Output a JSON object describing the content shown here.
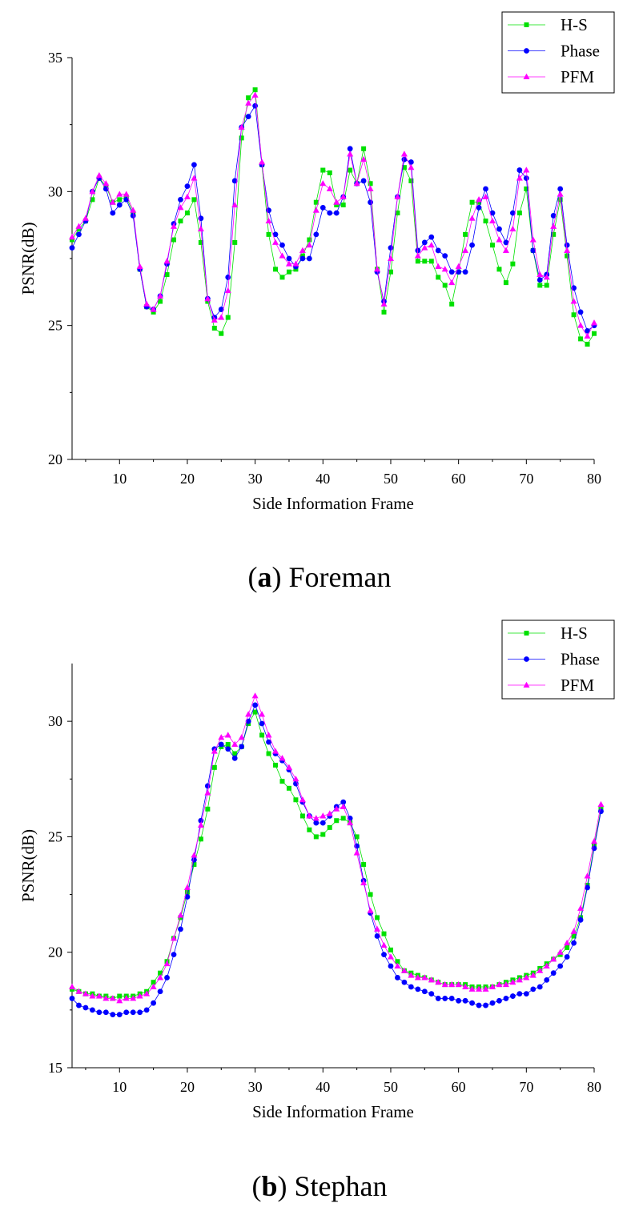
{
  "chart_data": [
    {
      "type": "line",
      "xlabel": "Side Information Frame",
      "ylabel": "PSNR(dB)",
      "xlim": [
        3,
        80
      ],
      "ylim": [
        20,
        35
      ],
      "xticks": [
        10,
        20,
        30,
        40,
        50,
        60,
        70,
        80
      ],
      "yticks": [
        20,
        25,
        30,
        35
      ],
      "grid": false,
      "legend_position": "top-right",
      "caption": {
        "open": "(",
        "letter": "a",
        "close": ")",
        "name": "Foreman"
      },
      "x_start": 3,
      "series": [
        {
          "name": "H-S",
          "color": "#00e000",
          "marker": "square",
          "values": [
            28.2,
            28.6,
            28.9,
            29.7,
            30.5,
            30.2,
            29.6,
            29.7,
            29.8,
            29.2,
            27.1,
            25.7,
            25.5,
            25.9,
            26.9,
            28.2,
            28.9,
            29.2,
            29.7,
            28.1,
            25.9,
            24.9,
            24.7,
            25.3,
            28.1,
            32.0,
            33.5,
            33.8,
            31.0,
            28.4,
            27.1,
            26.8,
            27.0,
            27.1,
            27.6,
            28.2,
            29.6,
            30.8,
            30.7,
            29.5,
            29.5,
            30.8,
            30.3,
            31.6,
            30.3,
            27.1,
            25.5,
            27.0,
            29.2,
            30.9,
            30.4,
            27.4,
            27.4,
            27.4,
            26.8,
            26.5,
            25.8,
            27.0,
            28.4,
            29.6,
            29.6,
            28.9,
            28.0,
            27.1,
            26.6,
            27.3,
            29.2,
            30.1,
            27.8,
            26.5,
            26.5,
            28.4,
            29.7,
            27.6,
            25.4,
            24.5,
            24.3,
            24.7
          ]
        },
        {
          "name": "Phase",
          "color": "#0000ff",
          "marker": "circle",
          "values": [
            27.9,
            28.4,
            28.9,
            30.0,
            30.5,
            30.1,
            29.2,
            29.5,
            29.7,
            29.1,
            27.1,
            25.7,
            25.6,
            26.1,
            27.3,
            28.8,
            29.7,
            30.2,
            31.0,
            29.0,
            26.0,
            25.3,
            25.6,
            26.8,
            30.4,
            32.4,
            32.8,
            33.2,
            31.0,
            29.3,
            28.4,
            28.0,
            27.5,
            27.2,
            27.5,
            27.5,
            28.4,
            29.4,
            29.2,
            29.2,
            29.8,
            31.6,
            30.3,
            30.4,
            29.6,
            27.0,
            25.9,
            27.9,
            29.8,
            31.2,
            31.1,
            27.8,
            28.1,
            28.3,
            27.8,
            27.6,
            27.0,
            27.0,
            27.0,
            28.0,
            29.4,
            30.1,
            29.2,
            28.6,
            28.1,
            29.2,
            30.8,
            30.5,
            27.8,
            26.7,
            26.9,
            29.1,
            30.1,
            28.0,
            26.4,
            25.5,
            24.8,
            25.0
          ]
        },
        {
          "name": "PFM",
          "color": "#ff00ff",
          "marker": "triangle",
          "values": [
            28.3,
            28.7,
            29.0,
            30.0,
            30.6,
            30.3,
            29.6,
            29.9,
            29.9,
            29.3,
            27.2,
            25.8,
            25.6,
            26.1,
            27.4,
            28.7,
            29.4,
            29.8,
            30.5,
            28.6,
            26.0,
            25.2,
            25.3,
            26.3,
            29.5,
            32.4,
            33.3,
            33.6,
            31.1,
            28.9,
            28.1,
            27.6,
            27.3,
            27.3,
            27.8,
            28.0,
            29.3,
            30.3,
            30.1,
            29.6,
            29.8,
            31.4,
            30.3,
            31.2,
            30.1,
            27.1,
            25.8,
            27.5,
            29.8,
            31.4,
            30.9,
            27.6,
            27.9,
            28.0,
            27.2,
            27.1,
            26.6,
            27.2,
            27.8,
            29.0,
            29.7,
            29.8,
            28.9,
            28.2,
            27.8,
            28.6,
            30.5,
            30.8,
            28.2,
            26.9,
            26.8,
            28.7,
            29.9,
            27.8,
            25.9,
            25.0,
            24.6,
            25.1
          ]
        }
      ]
    },
    {
      "type": "line",
      "xlabel": "Side Information Frame",
      "ylabel": "PSNR(dB)",
      "xlim": [
        3,
        80
      ],
      "ylim": [
        15,
        32.5
      ],
      "xticks": [
        10,
        20,
        30,
        40,
        50,
        60,
        70,
        80
      ],
      "yticks": [
        15,
        20,
        25,
        30
      ],
      "grid": false,
      "legend_position": "top-right",
      "caption": {
        "open": "(",
        "letter": "b",
        "close": ")",
        "name": "Stephan"
      },
      "x_start": 3,
      "series": [
        {
          "name": "H-S",
          "color": "#00e000",
          "marker": "square",
          "values": [
            18.4,
            18.3,
            18.2,
            18.2,
            18.1,
            18.1,
            18.0,
            18.1,
            18.1,
            18.1,
            18.2,
            18.3,
            18.7,
            19.1,
            19.6,
            20.6,
            21.5,
            22.6,
            23.8,
            24.9,
            26.2,
            28.0,
            28.9,
            29.0,
            28.6,
            28.9,
            29.9,
            30.4,
            29.4,
            28.6,
            28.1,
            27.4,
            27.1,
            26.6,
            25.9,
            25.3,
            25.0,
            25.1,
            25.4,
            25.7,
            25.8,
            25.6,
            25.0,
            23.8,
            22.5,
            21.5,
            20.8,
            20.1,
            19.6,
            19.2,
            19.1,
            19.0,
            18.9,
            18.8,
            18.7,
            18.6,
            18.6,
            18.6,
            18.6,
            18.5,
            18.5,
            18.5,
            18.5,
            18.6,
            18.7,
            18.8,
            18.9,
            19.0,
            19.1,
            19.3,
            19.5,
            19.7,
            19.9,
            20.2,
            20.7,
            21.5,
            22.9,
            24.6,
            26.2
          ]
        },
        {
          "name": "Phase",
          "color": "#0000ff",
          "marker": "circle",
          "values": [
            18.0,
            17.7,
            17.6,
            17.5,
            17.4,
            17.4,
            17.3,
            17.3,
            17.4,
            17.4,
            17.4,
            17.5,
            17.8,
            18.3,
            18.9,
            19.9,
            21.0,
            22.4,
            24.0,
            25.7,
            27.2,
            28.8,
            29.0,
            28.8,
            28.4,
            28.9,
            30.0,
            30.7,
            29.9,
            29.1,
            28.6,
            28.3,
            27.9,
            27.3,
            26.5,
            25.9,
            25.6,
            25.6,
            25.9,
            26.3,
            26.5,
            25.8,
            24.6,
            23.1,
            21.7,
            20.7,
            19.9,
            19.4,
            18.9,
            18.7,
            18.5,
            18.4,
            18.3,
            18.2,
            18.0,
            18.0,
            18.0,
            17.9,
            17.9,
            17.8,
            17.7,
            17.7,
            17.8,
            17.9,
            18.0,
            18.1,
            18.2,
            18.2,
            18.4,
            18.5,
            18.8,
            19.1,
            19.4,
            19.8,
            20.4,
            21.4,
            22.8,
            24.5,
            26.1
          ]
        },
        {
          "name": "PFM",
          "color": "#ff00ff",
          "marker": "triangle",
          "values": [
            18.5,
            18.3,
            18.2,
            18.1,
            18.1,
            18.0,
            18.0,
            17.9,
            18.0,
            18.0,
            18.1,
            18.2,
            18.5,
            18.9,
            19.5,
            20.6,
            21.6,
            22.8,
            24.2,
            25.5,
            26.9,
            28.7,
            29.3,
            29.4,
            29.0,
            29.3,
            30.3,
            31.1,
            30.3,
            29.4,
            28.7,
            28.4,
            28.0,
            27.5,
            26.6,
            25.9,
            25.8,
            25.9,
            26.0,
            26.2,
            26.3,
            25.6,
            24.3,
            23.0,
            21.8,
            21.0,
            20.3,
            19.8,
            19.4,
            19.2,
            19.0,
            18.9,
            18.9,
            18.8,
            18.7,
            18.6,
            18.6,
            18.6,
            18.5,
            18.4,
            18.4,
            18.4,
            18.5,
            18.6,
            18.6,
            18.7,
            18.8,
            18.9,
            19.0,
            19.2,
            19.4,
            19.7,
            20.0,
            20.4,
            20.9,
            21.9,
            23.3,
            24.8,
            26.4
          ]
        }
      ]
    }
  ]
}
